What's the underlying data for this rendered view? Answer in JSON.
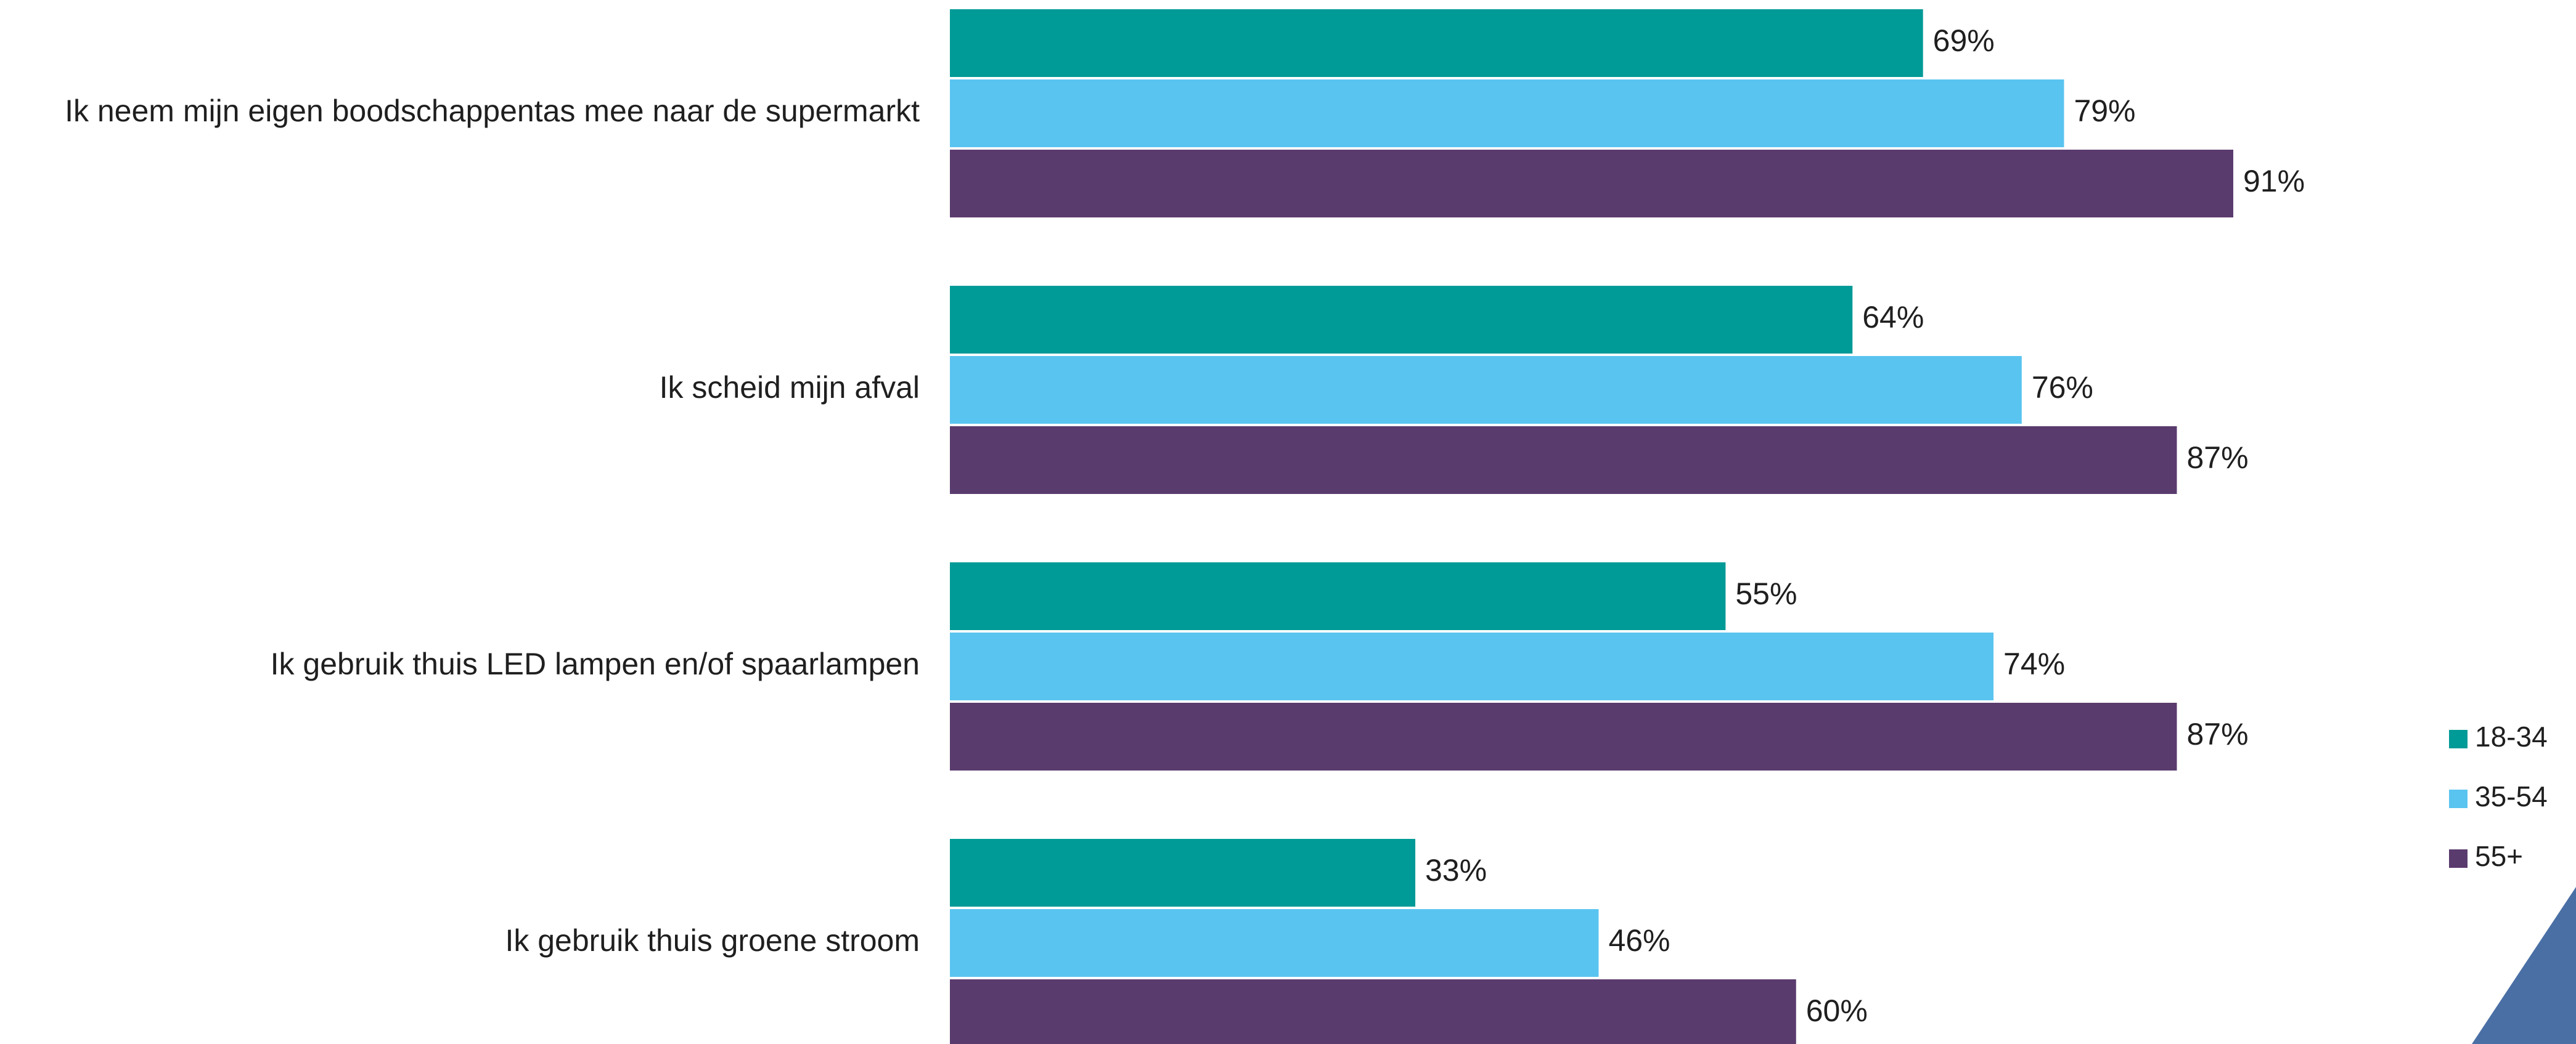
{
  "chart_data": {
    "type": "bar",
    "orientation": "horizontal",
    "categories": [
      "Ik neem mijn eigen boodschappentas mee naar de supermarkt",
      "Ik scheid mijn afval",
      "Ik gebruik thuis LED lampen en/of spaarlampen",
      "Ik gebruik thuis groene stroom"
    ],
    "series": [
      {
        "name": "18-34",
        "color": "#009a97",
        "values": [
          69,
          64,
          55,
          33
        ],
        "labels": [
          "69%",
          "64%",
          "55%",
          "33%"
        ]
      },
      {
        "name": "35-54",
        "color": "#5ac4f0",
        "values": [
          79,
          76,
          74,
          46
        ],
        "labels": [
          "79%",
          "76%",
          "74%",
          "46%"
        ]
      },
      {
        "name": "55+",
        "color": "#5a3b6e",
        "values": [
          91,
          87,
          87,
          60
        ],
        "labels": [
          "91%",
          "87%",
          "87%",
          "60%"
        ]
      }
    ],
    "value_unit": "%",
    "xlim": [
      0,
      100
    ],
    "grid": false,
    "legend_position": "right"
  },
  "decoration": {
    "corner_triangle_color": "#4a6fa5"
  }
}
